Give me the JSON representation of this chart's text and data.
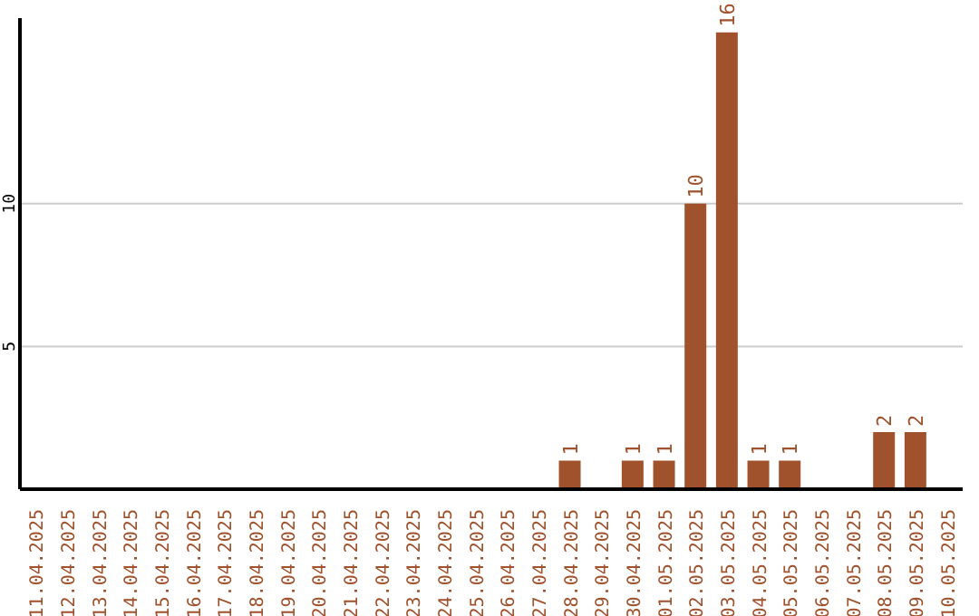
{
  "chart_data": {
    "type": "bar",
    "categories": [
      "11.04.2025",
      "12.04.2025",
      "13.04.2025",
      "14.04.2025",
      "15.04.2025",
      "16.04.2025",
      "17.04.2025",
      "18.04.2025",
      "19.04.2025",
      "20.04.2025",
      "21.04.2025",
      "22.04.2025",
      "23.04.2025",
      "24.04.2025",
      "25.04.2025",
      "26.04.2025",
      "27.04.2025",
      "28.04.2025",
      "29.04.2025",
      "30.04.2025",
      "01.05.2025",
      "02.05.2025",
      "03.05.2025",
      "04.05.2025",
      "05.05.2025",
      "06.05.2025",
      "07.05.2025",
      "08.05.2025",
      "09.05.2025",
      "10.05.2025"
    ],
    "values": [
      0,
      0,
      0,
      0,
      0,
      0,
      0,
      0,
      0,
      0,
      0,
      0,
      0,
      0,
      0,
      0,
      0,
      1,
      0,
      1,
      1,
      10,
      16,
      1,
      1,
      0,
      0,
      2,
      2,
      0
    ],
    "value_labels": [
      null,
      null,
      null,
      null,
      null,
      null,
      null,
      null,
      null,
      null,
      null,
      null,
      null,
      null,
      null,
      null,
      null,
      "1",
      null,
      "1",
      "1",
      "10",
      "16",
      "1",
      "1",
      null,
      null,
      "2",
      "2",
      null
    ],
    "color": "#a0522d",
    "ylim": [
      0,
      16.5
    ],
    "yticks": [
      5,
      10
    ],
    "grid": "y"
  }
}
